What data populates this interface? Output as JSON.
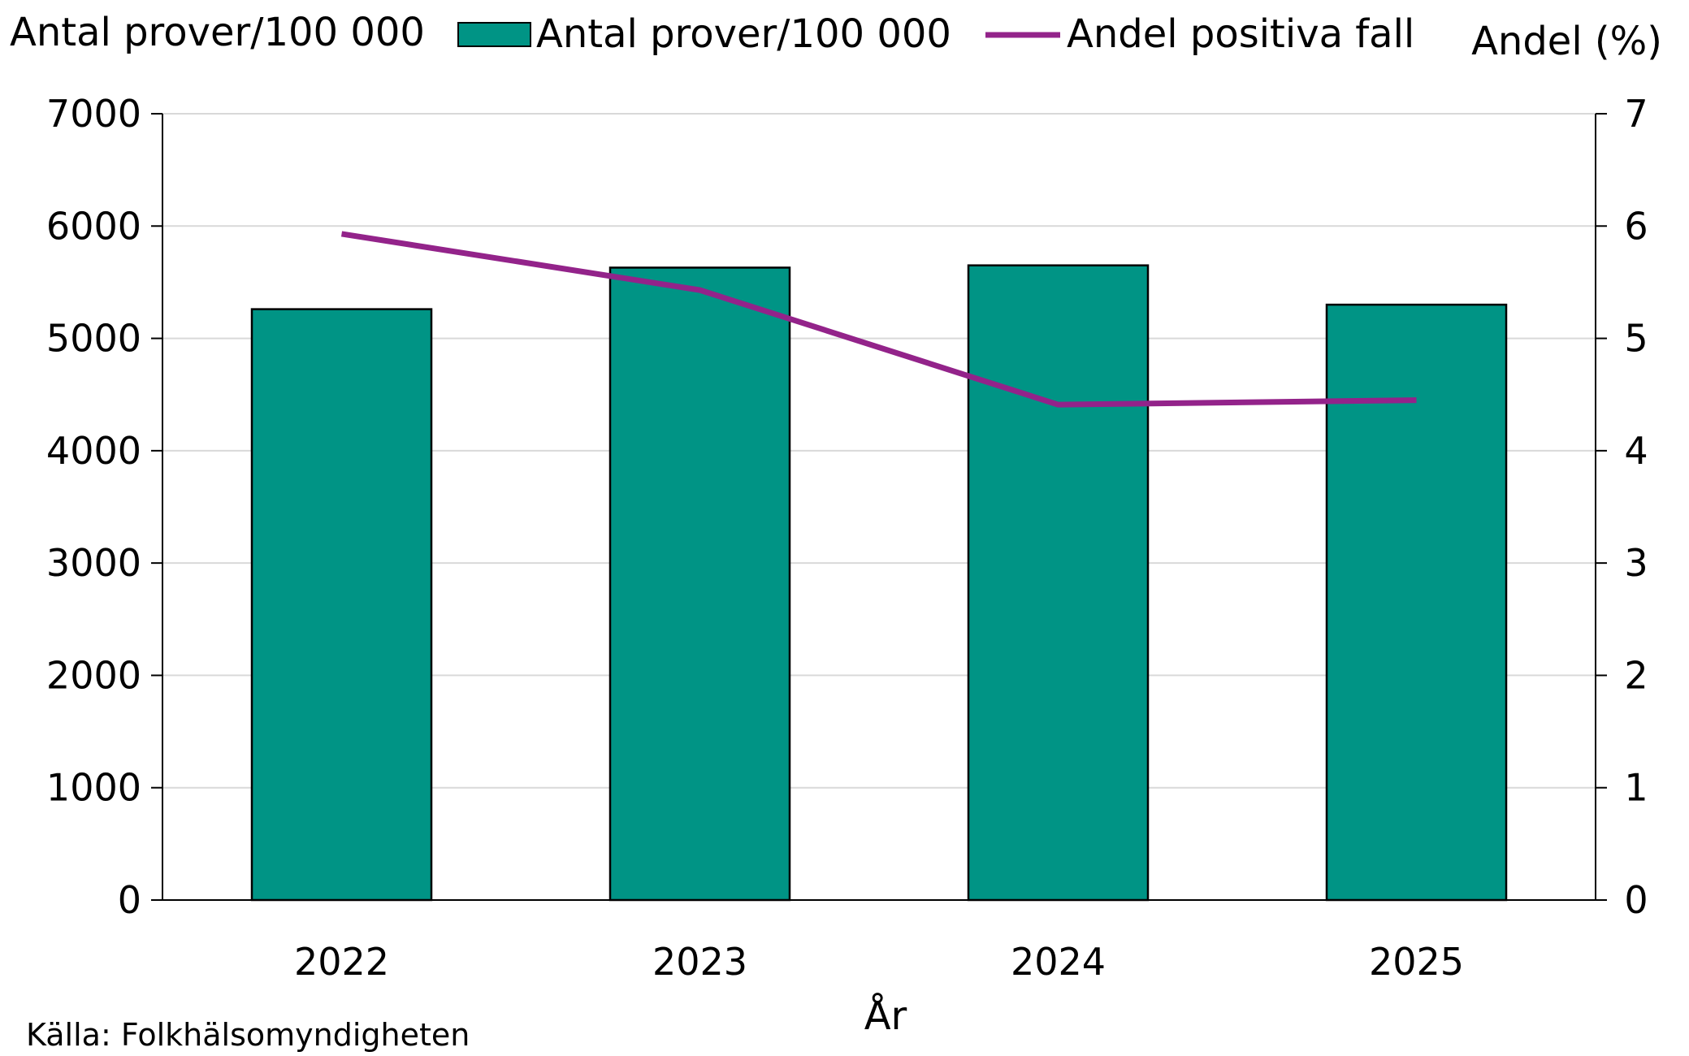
{
  "chart_data": {
    "type": "bar",
    "categories": [
      "2022",
      "2023",
      "2024",
      "2025"
    ],
    "series": [
      {
        "name": "Antal prover/100 000",
        "type": "bar",
        "axis": "left",
        "color": "#009485",
        "values": [
          5260,
          5630,
          5650,
          5300
        ]
      },
      {
        "name": "Andel positiva fall",
        "type": "line",
        "axis": "right",
        "color": "#93238A",
        "values": [
          5.93,
          5.43,
          4.41,
          4.45
        ]
      }
    ],
    "y_left": {
      "label": "Antal prover/100 000",
      "ylim": [
        0,
        7000
      ],
      "ticks": [
        "0",
        "1000",
        "2000",
        "3000",
        "4000",
        "5000",
        "6000",
        "7000"
      ]
    },
    "y_right": {
      "label": "Andel (%)",
      "ylim": [
        0,
        7
      ],
      "ticks": [
        "0",
        "1",
        "2",
        "3",
        "4",
        "5",
        "6",
        "7"
      ]
    },
    "xlabel": "År",
    "grid": true,
    "legend_position": "top",
    "source": "Källa: Folkhälsomyndigheten"
  }
}
